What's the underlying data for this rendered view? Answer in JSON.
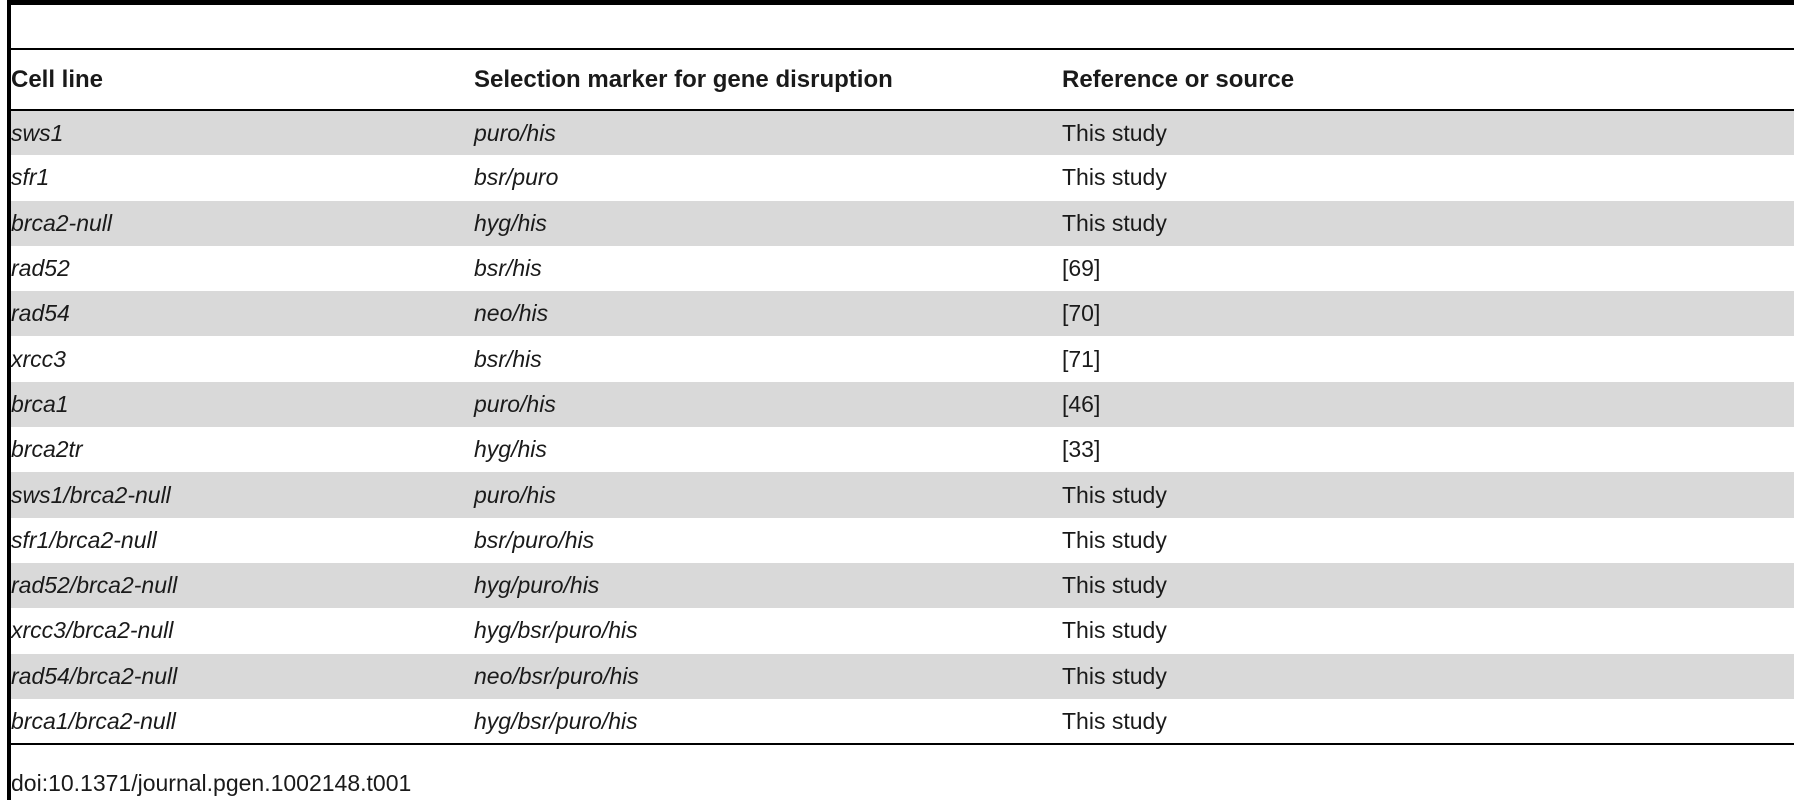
{
  "table": {
    "headers": [
      "Cell line",
      "Selection marker for gene disruption",
      "Reference or source"
    ],
    "rows": [
      [
        "sws1",
        "puro/his",
        "This study"
      ],
      [
        "sfr1",
        "bsr/puro",
        "This study"
      ],
      [
        "brca2-null",
        "hyg/his",
        "This study"
      ],
      [
        "rad52",
        "bsr/his",
        "[69]"
      ],
      [
        "rad54",
        "neo/his",
        "[70]"
      ],
      [
        "xrcc3",
        "bsr/his",
        "[71]"
      ],
      [
        "brca1",
        "puro/his",
        "[46]"
      ],
      [
        "brca2tr",
        "hyg/his",
        "[33]"
      ],
      [
        "sws1/brca2-null",
        "puro/his",
        "This study"
      ],
      [
        "sfr1/brca2-null",
        "bsr/puro/his",
        "This study"
      ],
      [
        "rad52/brca2-null",
        "hyg/puro/his",
        "This study"
      ],
      [
        "xrcc3/brca2-null",
        "hyg/bsr/puro/his",
        "This study"
      ],
      [
        "rad54/brca2-null",
        "neo/bsr/puro/his",
        "This study"
      ],
      [
        "brca1/brca2-null",
        "hyg/bsr/puro/his",
        "This study"
      ]
    ]
  },
  "footer": {
    "doi": "doi:10.1371/journal.pgen.1002148.t001"
  }
}
